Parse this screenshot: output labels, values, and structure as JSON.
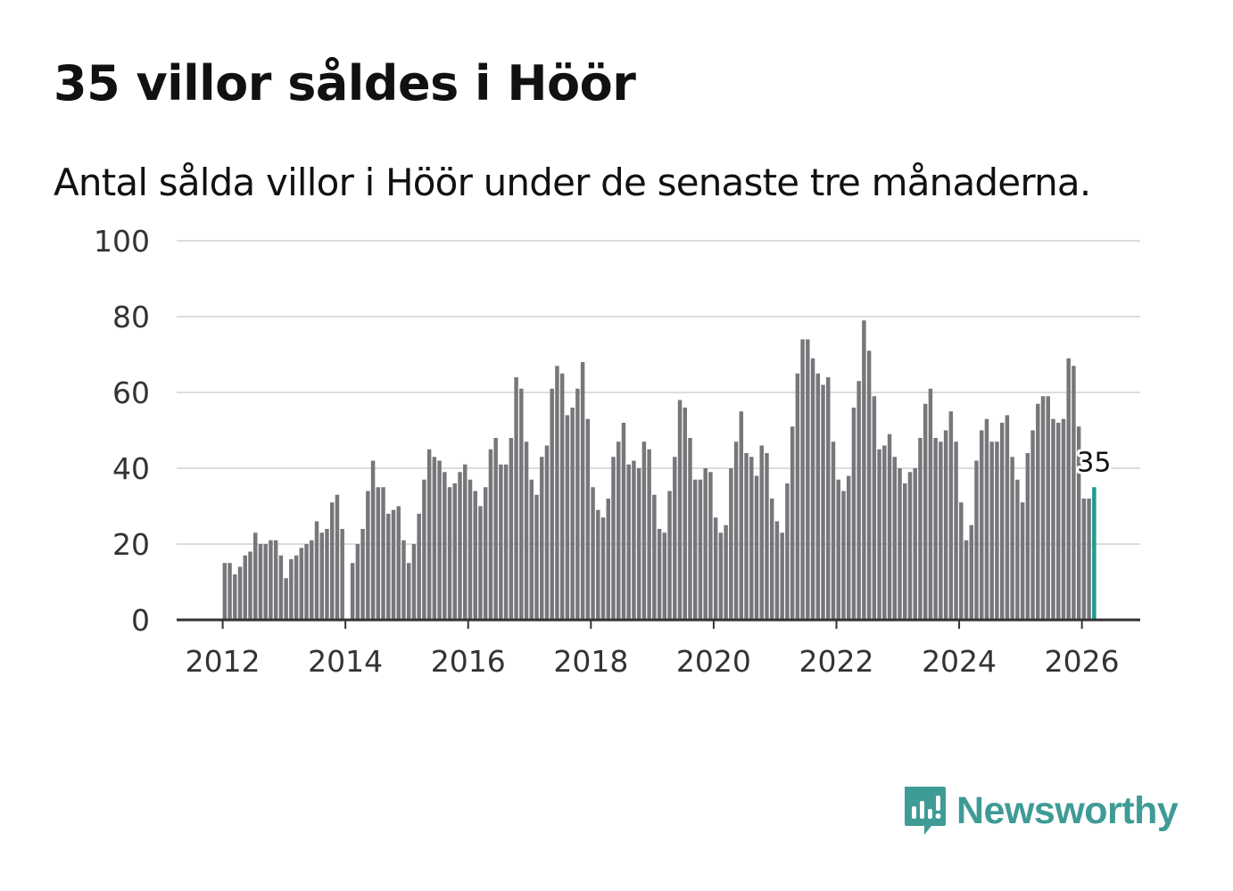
{
  "title": "35 villor såldes i Höör",
  "subtitle": "Antal sålda villor i Höör under de senaste tre månaderna.",
  "brand": {
    "name": "Newsworthy",
    "color": "#3f9b95",
    "icon": "newsworthy-logo-icon"
  },
  "colors": {
    "bar": "#77777b",
    "highlight": "#1e9b8d",
    "grid": "#dddddd",
    "axis": "#333333",
    "text": "#333333"
  },
  "chart_data": {
    "type": "bar",
    "title": "35 villor såldes i Höör",
    "xlabel": "",
    "ylabel": "",
    "ylim": [
      0,
      100
    ],
    "xlim": [
      2011.25,
      2026.95
    ],
    "y_ticks": [
      0,
      20,
      40,
      60,
      80,
      100
    ],
    "x_ticks": [
      2012,
      2014,
      2016,
      2018,
      2020,
      2022,
      2024,
      2026
    ],
    "grid": true,
    "x_start": 2012.0,
    "step": 0.0833333,
    "values": [
      15,
      15,
      12,
      14,
      17,
      18,
      23,
      20,
      20,
      21,
      21,
      17,
      11,
      16,
      17,
      19,
      20,
      21,
      26,
      23,
      24,
      31,
      33,
      24,
      null,
      15,
      20,
      24,
      34,
      42,
      35,
      35,
      28,
      29,
      30,
      21,
      15,
      20,
      28,
      37,
      45,
      43,
      42,
      39,
      35,
      36,
      39,
      41,
      37,
      34,
      30,
      35,
      45,
      48,
      41,
      41,
      48,
      64,
      61,
      47,
      37,
      33,
      43,
      46,
      61,
      67,
      65,
      54,
      56,
      61,
      68,
      53,
      35,
      29,
      27,
      32,
      43,
      47,
      52,
      41,
      42,
      40,
      47,
      45,
      33,
      24,
      23,
      34,
      43,
      58,
      56,
      48,
      37,
      37,
      40,
      39,
      27,
      23,
      25,
      40,
      47,
      55,
      44,
      43,
      38,
      46,
      44,
      32,
      26,
      23,
      36,
      51,
      65,
      74,
      74,
      69,
      65,
      62,
      64,
      47,
      37,
      34,
      38,
      56,
      63,
      79,
      71,
      59,
      45,
      46,
      49,
      43,
      40,
      36,
      39,
      40,
      48,
      57,
      61,
      48,
      47,
      50,
      55,
      47,
      31,
      21,
      25,
      42,
      50,
      53,
      47,
      47,
      52,
      54,
      43,
      37,
      31,
      44,
      50,
      57,
      59,
      59,
      53,
      52,
      53,
      69,
      67,
      51,
      32,
      32,
      35
    ],
    "highlight": {
      "value": 35,
      "label": "35",
      "color": "#1e9b8d"
    }
  }
}
